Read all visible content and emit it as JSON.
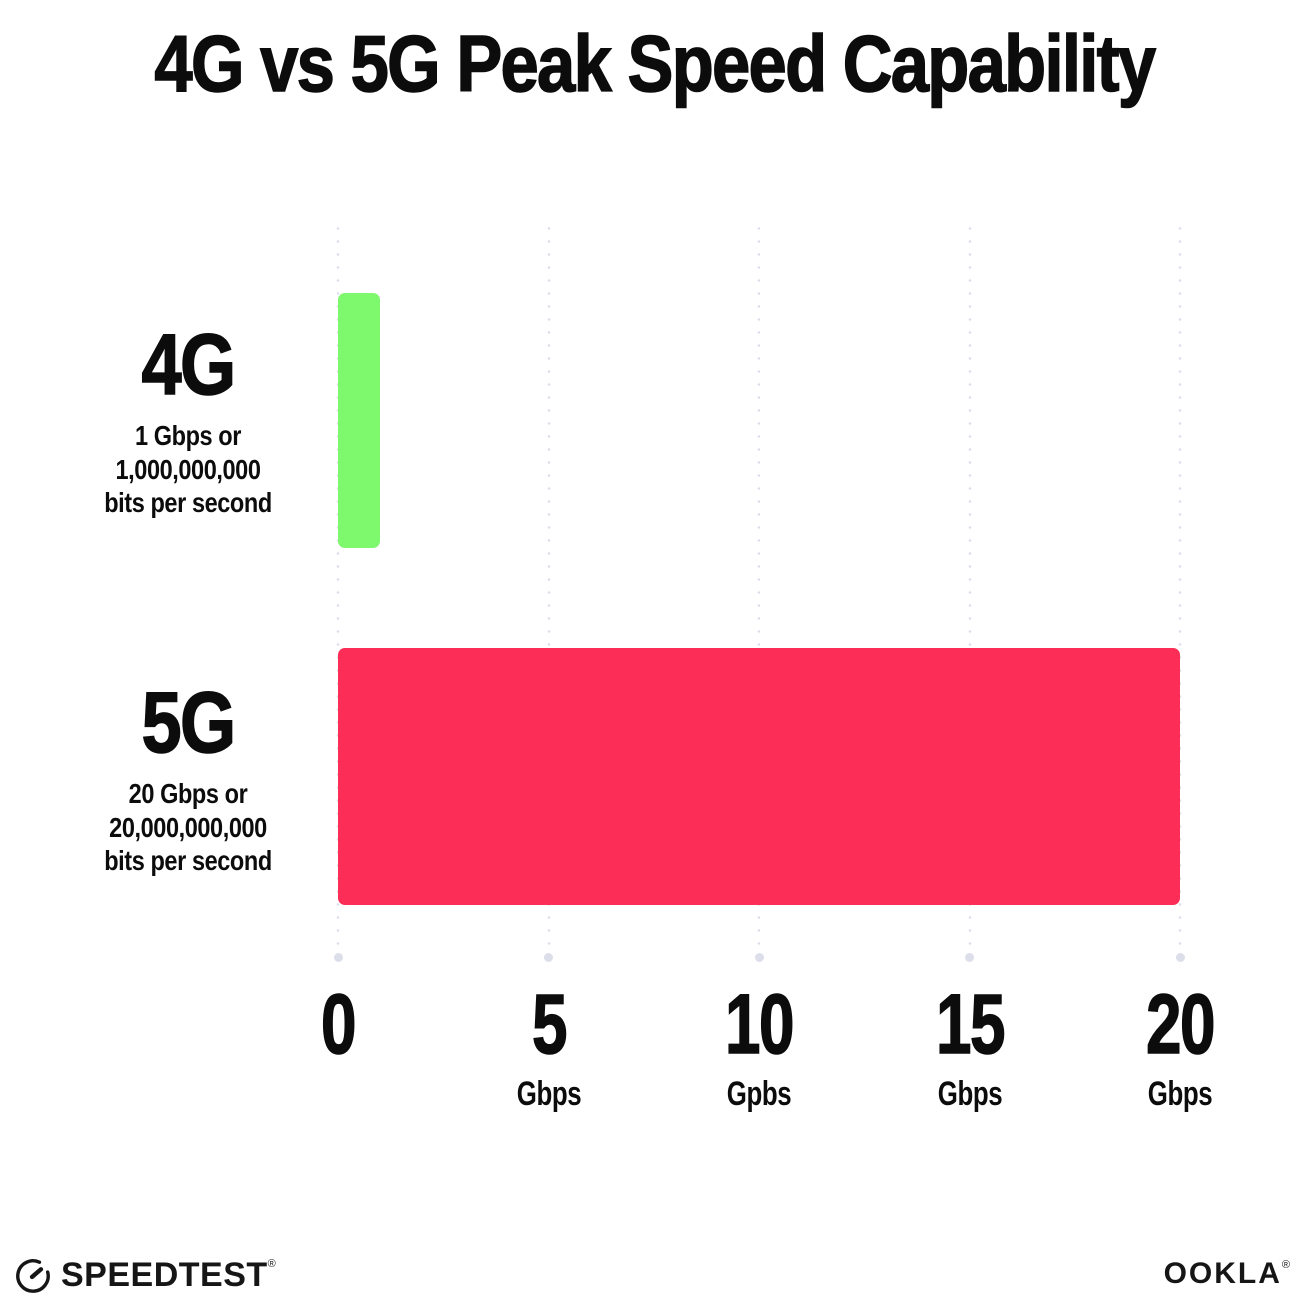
{
  "title": "4G vs 5G Peak Speed Capability",
  "chart_data": {
    "type": "bar",
    "orientation": "horizontal",
    "title": "4G vs 5G Peak Speed Capability",
    "categories": [
      "4G",
      "5G"
    ],
    "values": [
      1,
      20
    ],
    "value_unit": "Gbps",
    "xlim": [
      0,
      20
    ],
    "xticks": [
      0,
      5,
      10,
      15,
      20
    ],
    "xtick_units": [
      "",
      "Gbps",
      "Gpbs",
      "Gbps",
      "Gbps"
    ],
    "bar_colors": [
      "#7EF96D",
      "#FC2D56"
    ],
    "grid": "dotted-vertical",
    "legend": "none",
    "annotations": [
      "4G: 1 Gbps or 1,000,000,000 bits per second",
      "5G: 20 Gbps or 20,000,000,000 bits per second"
    ]
  },
  "rows": [
    {
      "label": "4G",
      "desc_line1": "1 Gbps or",
      "desc_line2": "1,000,000,000",
      "desc_line3": "bits per second",
      "value": 1,
      "color": "#7EF96D"
    },
    {
      "label": "5G",
      "desc_line1": "20 Gbps or",
      "desc_line2": "20,000,000,000",
      "desc_line3": "bits per second",
      "value": 20,
      "color": "#FC2D56"
    }
  ],
  "axis": {
    "ticks": [
      {
        "value": "0",
        "unit": ""
      },
      {
        "value": "5",
        "unit": "Gbps"
      },
      {
        "value": "10",
        "unit": "Gpbs"
      },
      {
        "value": "15",
        "unit": "Gbps"
      },
      {
        "value": "20",
        "unit": "Gbps"
      }
    ]
  },
  "footer": {
    "speedtest_label": "SPEEDTEST",
    "speedtest_reg": "®",
    "ookla_label": "OOKLA",
    "ookla_reg": "®"
  },
  "colors": {
    "background": "#ffffff",
    "text": "#0c0c0c",
    "grid_dots": "#dcdeea",
    "bar_4g": "#7EF96D",
    "bar_5g": "#FC2D56"
  }
}
